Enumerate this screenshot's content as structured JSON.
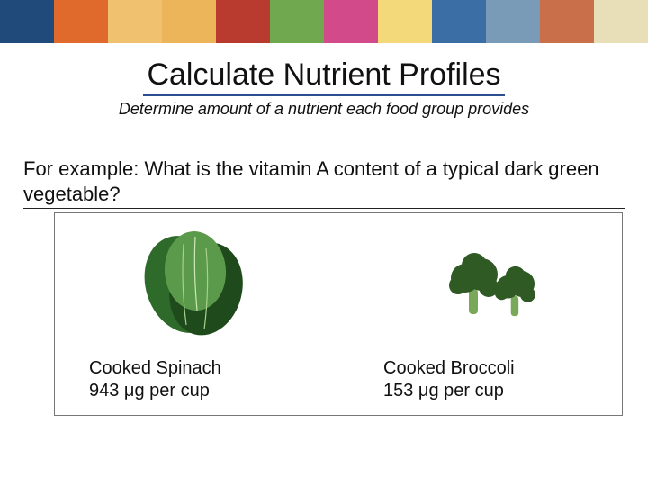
{
  "banner": {
    "segments": [
      "#1f4a7a",
      "#e06a2b",
      "#f0c270",
      "#ecb55a",
      "#b93a2f",
      "#6fa84f",
      "#d24a8a",
      "#f4d97a",
      "#3a6ea5",
      "#7a9bb8",
      "#c96f4a",
      "#e8dfb8"
    ]
  },
  "title": "Calculate Nutrient Profiles",
  "title_underline_color": "#2a4e8f",
  "subtitle": "Determine amount of a nutrient each food group provides",
  "example_question": "For example:  What is the vitamin A content of a typical dark green vegetable?",
  "items": [
    {
      "name": "Cooked Spinach",
      "value": "943 μg per cup",
      "leaf_color": "#2e6b2a",
      "leaf_dark": "#1e4a1c",
      "leaf_light": "#5a9a4a"
    },
    {
      "name": "Cooked Broccoli",
      "value": "153 μg per cup",
      "floret_color": "#2f5a24",
      "stem_color": "#7aa85a"
    }
  ]
}
